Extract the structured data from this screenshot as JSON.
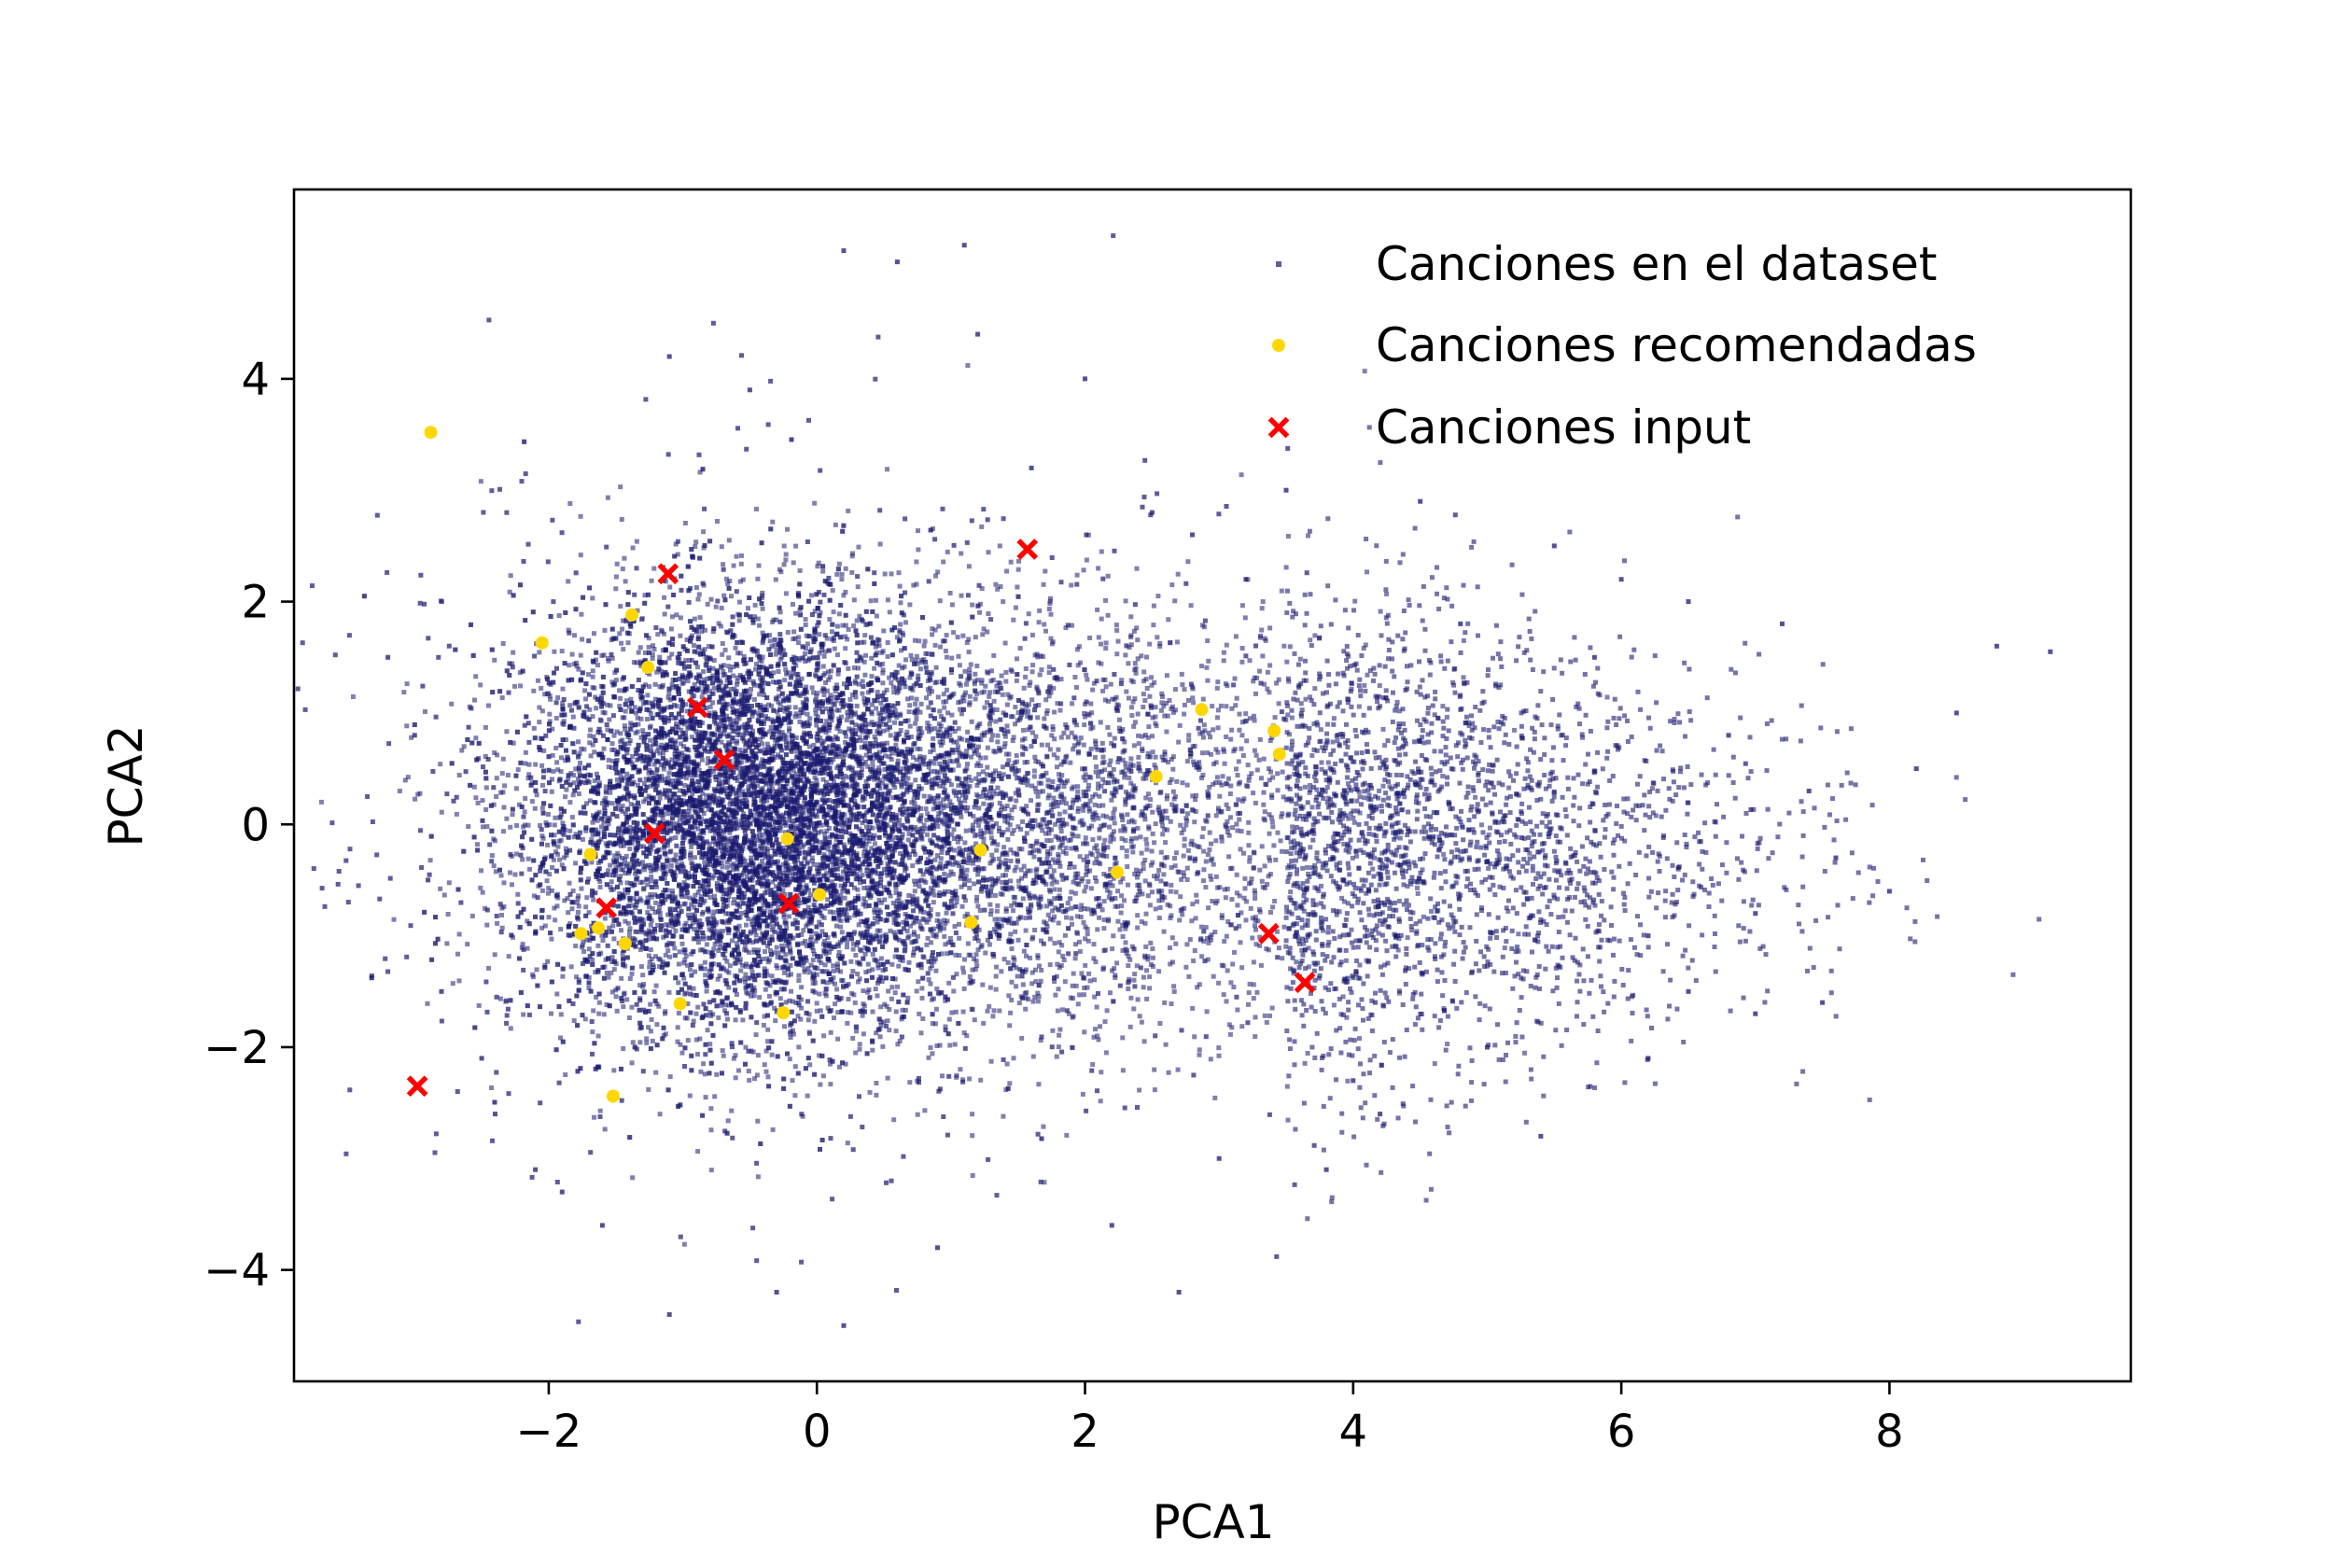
{
  "chart_data": {
    "type": "scatter",
    "title": "",
    "xlabel": "PCA1",
    "ylabel": "PCA2",
    "xlim": [
      -3.9,
      9.8
    ],
    "ylim": [
      -5.0,
      5.7
    ],
    "xticks": [
      -2,
      0,
      2,
      4,
      6,
      8
    ],
    "yticks": [
      -4,
      -2,
      0,
      2,
      4
    ],
    "xtick_labels": [
      "−2",
      "0",
      "2",
      "4",
      "6",
      "8"
    ],
    "ytick_labels": [
      "−4",
      "−2",
      "0",
      "2",
      "4"
    ],
    "grid": false,
    "legend_position": "top-right",
    "series": [
      {
        "name": "Canciones en el dataset",
        "marker": "square",
        "color": "#191970",
        "description": "dense cloud of tens of thousands of points, core x -2.5..2.5, y -3..3, tail extending to x≈9",
        "points": [
          [
            0.2,
            5.15
          ],
          [
            1.1,
            5.2
          ],
          [
            0.6,
            5.05
          ],
          [
            -1.1,
            4.2
          ],
          [
            -0.5,
            3.9
          ],
          [
            1.2,
            4.4
          ],
          [
            2.0,
            4.0
          ],
          [
            -3.2,
            1.5
          ],
          [
            -3.0,
            0.8
          ],
          [
            -2.9,
            -0.5
          ],
          [
            -2.8,
            -1.5
          ],
          [
            -2.5,
            -2.1
          ],
          [
            -2.4,
            -2.6
          ],
          [
            -2.1,
            -3.1
          ],
          [
            -1.9,
            -3.3
          ],
          [
            -1.6,
            -3.6
          ],
          [
            -1.1,
            -4.4
          ],
          [
            -0.3,
            -4.2
          ],
          [
            0.2,
            -4.5
          ],
          [
            0.9,
            -3.8
          ],
          [
            2.7,
            -4.2
          ],
          [
            2.2,
            -3.6
          ],
          [
            3.8,
            -3.1
          ],
          [
            4.2,
            -2.6
          ],
          [
            5.4,
            -2.8
          ],
          [
            6.2,
            -2.1
          ],
          [
            7.0,
            -1.7
          ],
          [
            7.5,
            -1.6
          ],
          [
            8.0,
            -0.6
          ],
          [
            8.2,
            0.5
          ],
          [
            8.5,
            1.0
          ],
          [
            8.8,
            1.6
          ],
          [
            9.2,
            1.55
          ],
          [
            7.2,
            1.8
          ],
          [
            6.5,
            2.0
          ],
          [
            6.0,
            2.2
          ],
          [
            5.5,
            2.5
          ],
          [
            4.5,
            2.9
          ],
          [
            3.5,
            3.0
          ],
          [
            2.8,
            2.6
          ],
          [
            7.0,
            -0.8
          ],
          [
            6.8,
            0.8
          ],
          [
            7.4,
            0.3
          ],
          [
            7.6,
            -0.3
          ],
          [
            6.2,
            -1.0
          ],
          [
            6.5,
            -1.5
          ],
          [
            5.8,
            1.5
          ],
          [
            5.0,
            -2.0
          ],
          [
            4.8,
            1.8
          ],
          [
            4.0,
            -2.3
          ],
          [
            3.0,
            -3.0
          ],
          [
            3.2,
            2.2
          ],
          [
            2.5,
            2.8
          ],
          [
            1.6,
            3.2
          ]
        ]
      },
      {
        "name": "Canciones recomendadas",
        "marker": "circle",
        "color": "#FFD700",
        "points": [
          [
            -2.88,
            3.52
          ],
          [
            -2.05,
            1.63
          ],
          [
            -1.38,
            1.88
          ],
          [
            -1.26,
            1.41
          ],
          [
            2.87,
            1.03
          ],
          [
            3.41,
            0.84
          ],
          [
            3.45,
            0.63
          ],
          [
            2.53,
            0.43
          ],
          [
            -0.22,
            -0.13
          ],
          [
            1.22,
            -0.23
          ],
          [
            -1.69,
            -0.27
          ],
          [
            0.02,
            -0.63
          ],
          [
            2.24,
            -0.43
          ],
          [
            -1.63,
            -0.93
          ],
          [
            -1.76,
            -0.98
          ],
          [
            1.15,
            -0.88
          ],
          [
            -1.43,
            -1.07
          ],
          [
            -1.02,
            -1.61
          ],
          [
            -0.25,
            -1.69
          ],
          [
            -1.52,
            -2.44
          ]
        ]
      },
      {
        "name": "Canciones input",
        "marker": "x",
        "color": "#FF0000",
        "points": [
          [
            -1.11,
            2.25
          ],
          [
            1.57,
            2.47
          ],
          [
            -0.89,
            1.05
          ],
          [
            -0.69,
            0.58
          ],
          [
            -1.21,
            -0.08
          ],
          [
            -1.57,
            -0.75
          ],
          [
            -0.21,
            -0.71
          ],
          [
            3.37,
            -0.98
          ],
          [
            3.64,
            -1.42
          ],
          [
            -2.98,
            -2.35
          ]
        ]
      }
    ]
  }
}
